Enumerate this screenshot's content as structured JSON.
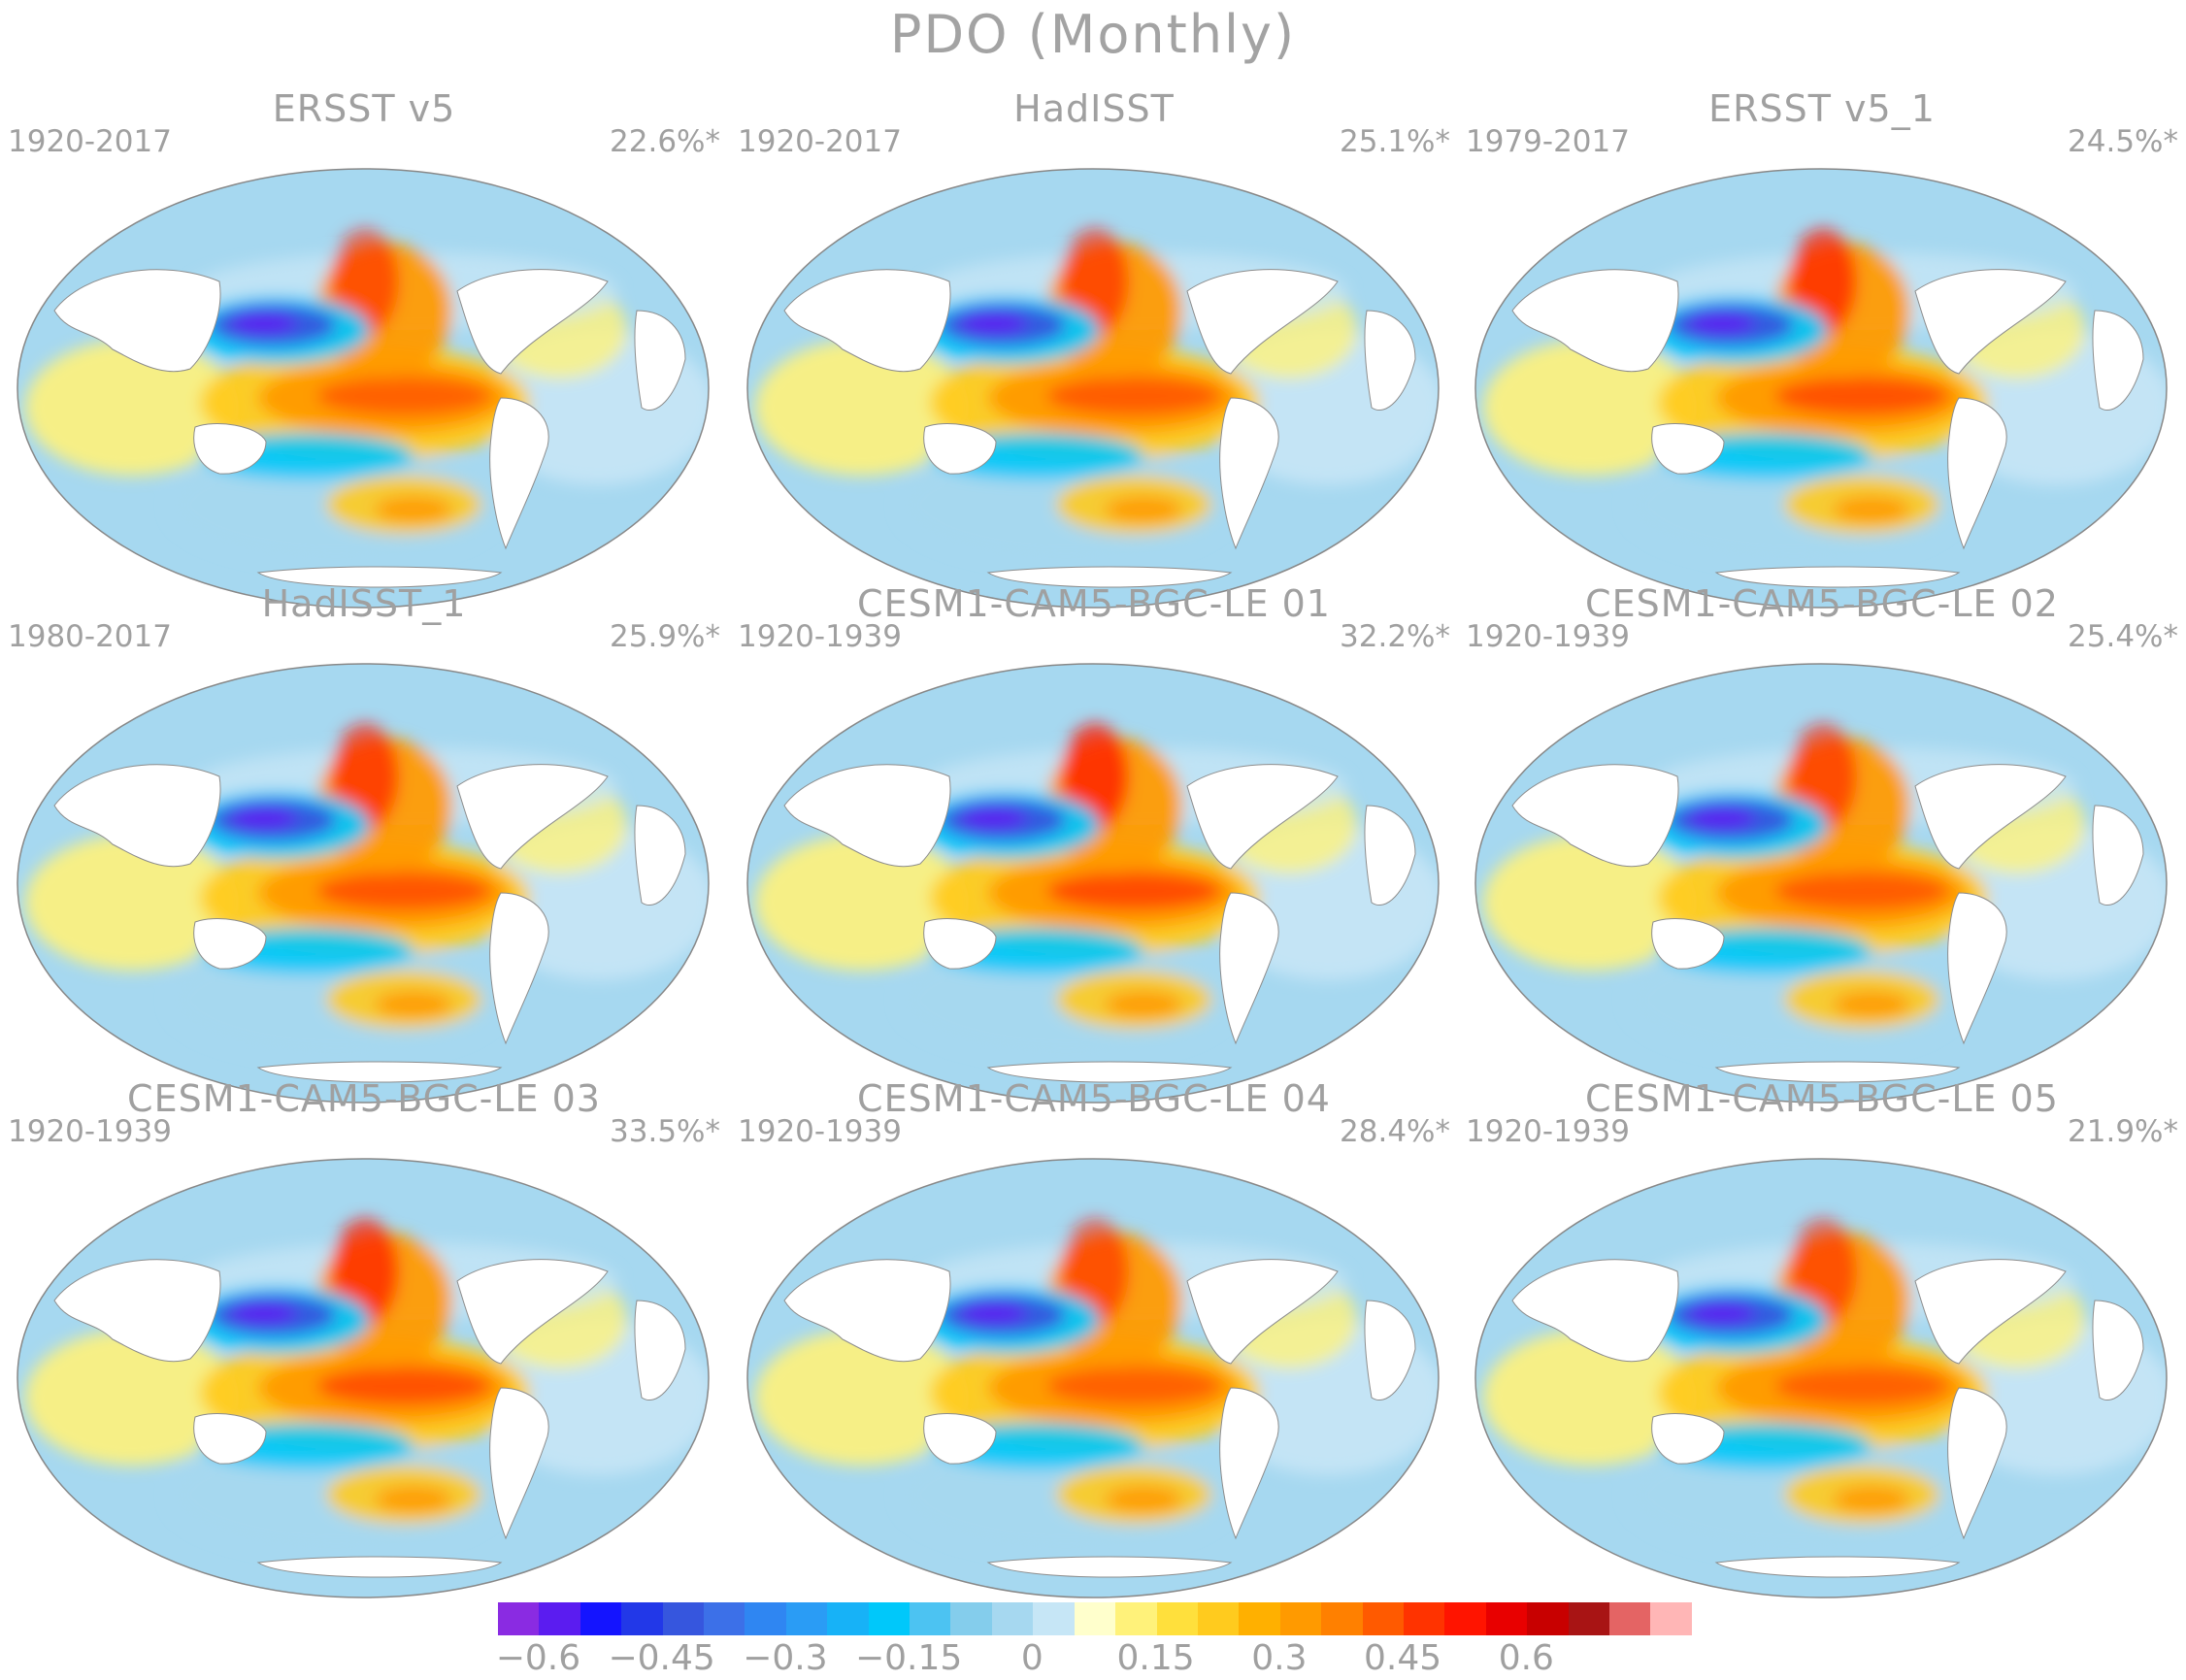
{
  "figure": {
    "title": "PDO (Monthly)"
  },
  "panels": [
    {
      "title": "ERSST v5",
      "period": "1920-2017",
      "variance": "22.6%*"
    },
    {
      "title": "HadISST",
      "period": "1920-2017",
      "variance": "25.1%*"
    },
    {
      "title": "ERSST v5_1",
      "period": "1979-2017",
      "variance": "24.5%*"
    },
    {
      "title": "HadISST_1",
      "period": "1980-2017",
      "variance": "25.9%*"
    },
    {
      "title": "CESM1-CAM5-BGC-LE 01",
      "period": "1920-1939",
      "variance": "32.2%*"
    },
    {
      "title": "CESM1-CAM5-BGC-LE 02",
      "period": "1920-1939",
      "variance": "25.4%*"
    },
    {
      "title": "CESM1-CAM5-BGC-LE 03",
      "period": "1920-1939",
      "variance": "33.5%*"
    },
    {
      "title": "CESM1-CAM5-BGC-LE 04",
      "period": "1920-1939",
      "variance": "28.4%*"
    },
    {
      "title": "CESM1-CAM5-BGC-LE 05",
      "period": "1920-1939",
      "variance": "21.9%*"
    }
  ],
  "colorbar": {
    "colors": [
      "#8a2be2",
      "#5b1cf0",
      "#1414ff",
      "#2238e8",
      "#3656de",
      "#3c70e8",
      "#2f86f2",
      "#2a9cf5",
      "#17b2f7",
      "#00c8fa",
      "#4cc3f2",
      "#84cdec",
      "#a6d8f0",
      "#c6e6f6",
      "#ffffcc",
      "#fff27a",
      "#ffe03c",
      "#ffcb1e",
      "#ffb000",
      "#ff9a00",
      "#ff8000",
      "#ff5a00",
      "#ff3300",
      "#ff1400",
      "#e80000",
      "#c80000",
      "#a81414",
      "#e46464",
      "#ffb6b6"
    ],
    "labels": [
      "−0.6",
      "−0.45",
      "−0.3",
      "−0.15",
      "0",
      "0.15",
      "0.3",
      "0.45",
      "0.6"
    ],
    "label_values": [
      -0.6,
      -0.45,
      -0.3,
      -0.15,
      0,
      0.15,
      0.3,
      0.45,
      0.6
    ]
  }
}
